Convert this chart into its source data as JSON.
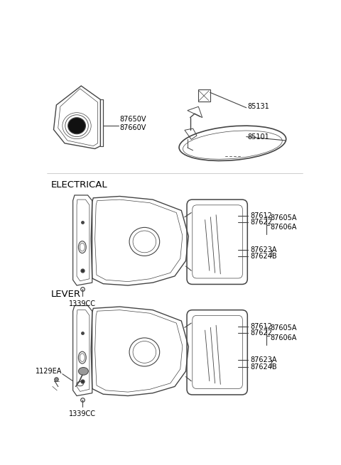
{
  "bg_color": "#ffffff",
  "line_color": "#444444",
  "text_color": "#000000",
  "label_fontsize": 7.0,
  "section_fontsize": 9.5,
  "fig_width": 4.8,
  "fig_height": 6.55,
  "top_left": {
    "label": "87650V\n87660V"
  },
  "top_right": {
    "label1": "85131",
    "label2": "85101"
  },
  "electrical": {
    "title": "ELECTRICAL",
    "labels": [
      "87612",
      "87622",
      "87605A",
      "87606A",
      "87623A",
      "87624B"
    ],
    "bottom_label": "1339CC"
  },
  "lever": {
    "title": "LEVER",
    "labels": [
      "87612",
      "87622",
      "87605A",
      "87606A",
      "87623A",
      "87624B"
    ],
    "bottom_label": "1339CC",
    "left_label": "1129EA"
  }
}
